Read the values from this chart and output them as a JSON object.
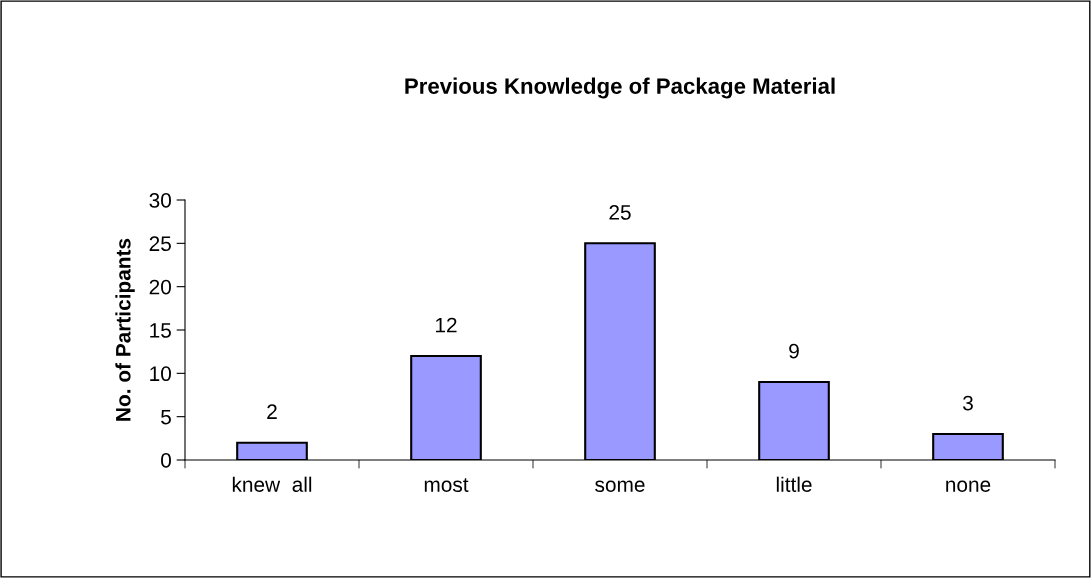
{
  "chart_data": {
    "type": "bar",
    "title": "Previous Knowledge of Package Material",
    "ylabel": "No. of Participants",
    "categories": [
      "knew  all",
      "most",
      "some",
      "little",
      "none"
    ],
    "values": [
      2,
      12,
      25,
      9,
      3
    ],
    "color": "#9999ff",
    "ylim": [
      0,
      30
    ],
    "yticks": [
      0,
      5,
      10,
      15,
      20,
      25,
      30
    ],
    "data_labels": true,
    "grid": false,
    "legend": false
  }
}
